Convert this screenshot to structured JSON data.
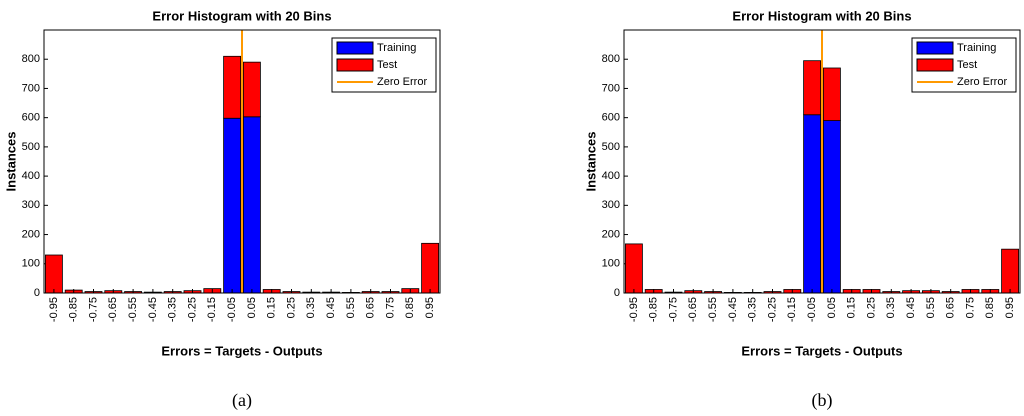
{
  "chart_data": [
    {
      "type": "bar",
      "stacked": true,
      "title": "Error Histogram with 20 Bins",
      "xlabel": "Errors = Targets - Outputs",
      "ylabel": "Instances",
      "caption": "(a)",
      "categories": [
        "-0.95",
        "-0.85",
        "-0.75",
        "-0.65",
        "-0.55",
        "-0.45",
        "-0.35",
        "-0.25",
        "-0.15",
        "-0.05",
        "0.05",
        "0.15",
        "0.25",
        "0.35",
        "0.45",
        "0.55",
        "0.65",
        "0.75",
        "0.85",
        "0.95"
      ],
      "series": [
        {
          "name": "Training",
          "color": "#0000ff",
          "values": [
            0,
            0,
            0,
            0,
            0,
            0,
            0,
            0,
            0,
            598,
            603,
            0,
            0,
            0,
            0,
            0,
            0,
            0,
            0,
            0
          ]
        },
        {
          "name": "Test",
          "color": "#ff0000",
          "values": [
            130,
            10,
            5,
            8,
            5,
            3,
            5,
            8,
            15,
            212,
            187,
            12,
            5,
            3,
            3,
            2,
            5,
            5,
            15,
            170
          ]
        }
      ],
      "zero_line": {
        "name": "Zero Error",
        "color": "#ff9900"
      },
      "ylim": [
        0,
        900
      ],
      "yticks": [
        0,
        100,
        200,
        300,
        400,
        500,
        600,
        700,
        800
      ],
      "legend": "upper right"
    },
    {
      "type": "bar",
      "stacked": true,
      "title": "Error Histogram with 20 Bins",
      "xlabel": "Errors = Targets - Outputs",
      "ylabel": "Instances",
      "caption": "(b)",
      "categories": [
        "-0.95",
        "-0.85",
        "-0.75",
        "-0.65",
        "-0.55",
        "-0.45",
        "-0.35",
        "-0.25",
        "-0.15",
        "-0.05",
        "0.05",
        "0.15",
        "0.25",
        "0.35",
        "0.45",
        "0.55",
        "0.65",
        "0.75",
        "0.85",
        "0.95"
      ],
      "series": [
        {
          "name": "Training",
          "color": "#0000ff",
          "values": [
            0,
            0,
            0,
            0,
            0,
            0,
            0,
            0,
            0,
            610,
            590,
            0,
            0,
            0,
            0,
            0,
            0,
            0,
            0,
            0
          ]
        },
        {
          "name": "Test",
          "color": "#ff0000",
          "values": [
            168,
            12,
            3,
            8,
            5,
            2,
            2,
            5,
            12,
            185,
            180,
            12,
            12,
            5,
            8,
            8,
            5,
            12,
            12,
            150
          ]
        }
      ],
      "zero_line": {
        "name": "Zero Error",
        "color": "#ff9900"
      },
      "ylim": [
        0,
        900
      ],
      "yticks": [
        0,
        100,
        200,
        300,
        400,
        500,
        600,
        700,
        800
      ],
      "legend": "upper right"
    }
  ]
}
